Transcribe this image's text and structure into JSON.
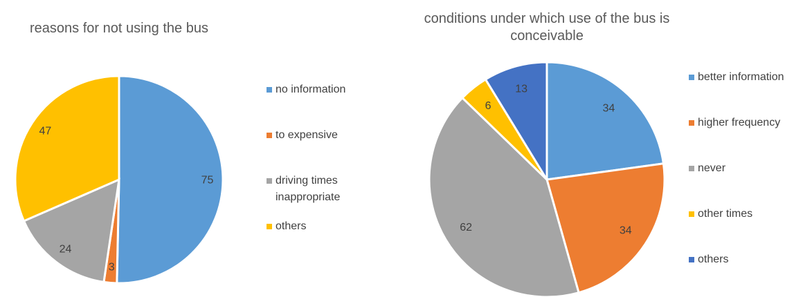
{
  "chart_data": [
    {
      "type": "pie",
      "title": "reasons for not using the bus",
      "categories": [
        "no information",
        "to expensive",
        "driving times inappropriate",
        "others"
      ],
      "values": [
        75,
        3,
        24,
        47
      ],
      "colors": [
        "#5b9bd5",
        "#ed7d31",
        "#a5a5a5",
        "#ffc000"
      ],
      "legend": "right"
    },
    {
      "type": "pie",
      "title": "conditions under which use of the bus is conceivable",
      "categories": [
        "better information",
        "higher frequency",
        "never",
        "other times",
        "others"
      ],
      "values": [
        34,
        34,
        62,
        6,
        13
      ],
      "colors": [
        "#5b9bd5",
        "#ed7d31",
        "#a5a5a5",
        "#ffc000",
        "#4472c4"
      ],
      "legend": "right"
    }
  ]
}
